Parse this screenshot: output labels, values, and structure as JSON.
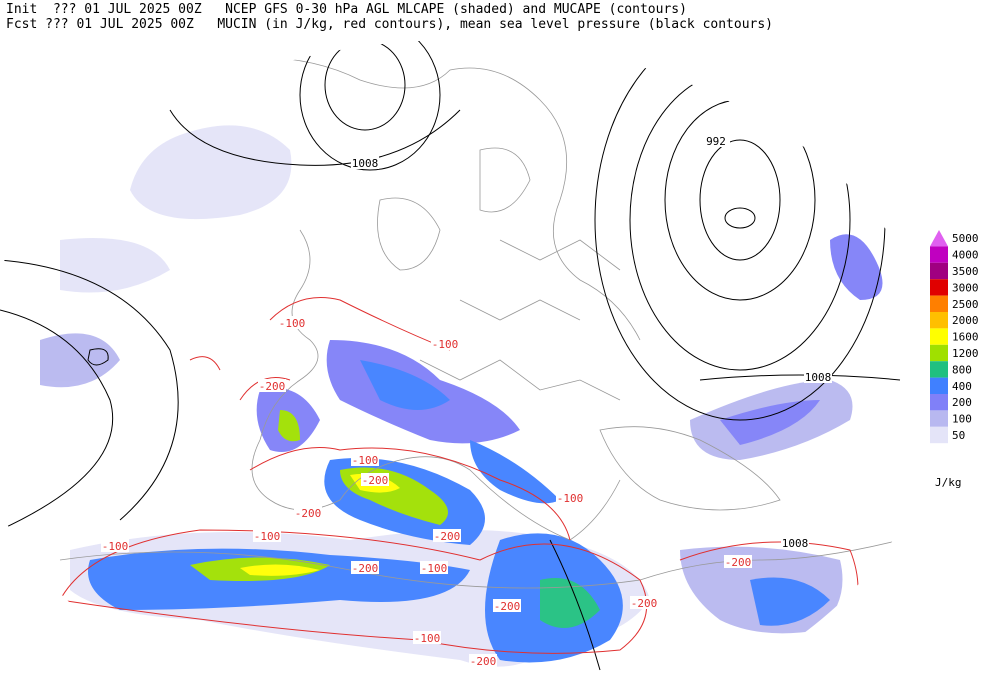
{
  "header": {
    "line1": "Init  ??? 01 JUL 2025 00Z   NCEP GFS 0-30 hPa AGL MLCAPE (shaded) and MUCAPE (contours)",
    "line2": "Fcst ??? 01 JUL 2025 00Z   MUCIN (in J/kg, red contours), mean sea level pressure (black contours)"
  },
  "colorbar": {
    "levels": [
      5000,
      4000,
      3500,
      3000,
      2500,
      2000,
      1600,
      1200,
      800,
      400,
      200,
      100,
      50
    ],
    "colors": [
      "#e060f0",
      "#c000c0",
      "#a00080",
      "#e00000",
      "#ff7f00",
      "#ffbf00",
      "#ffff00",
      "#a0e000",
      "#20c080",
      "#4080ff",
      "#8080f8",
      "#b8b8f0",
      "#e4e4f8"
    ],
    "unit": "J/kg"
  },
  "pressure_contour_labels": [
    1008,
    992,
    1008,
    1008
  ],
  "cin_contour_labels": [
    -100,
    -100,
    -200,
    -200,
    -200,
    -200,
    -200,
    -200,
    -200,
    -200,
    -200,
    -100,
    -100,
    -100,
    -100,
    -100,
    -100
  ]
}
